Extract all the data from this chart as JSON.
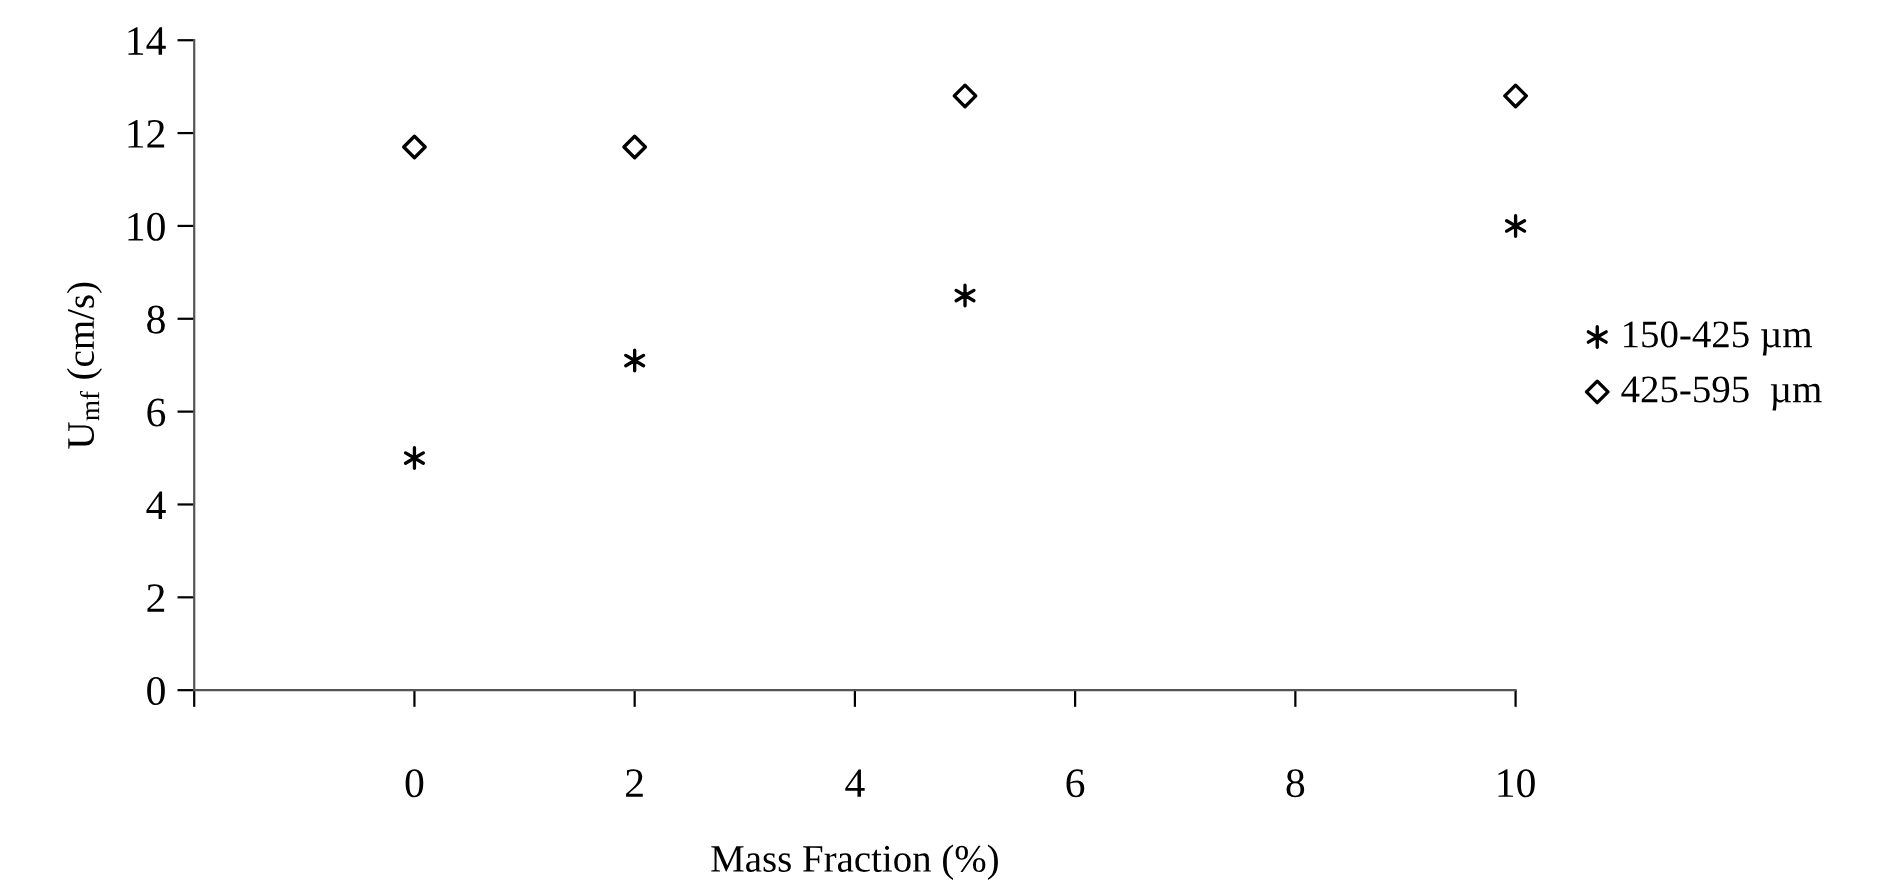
{
  "chart_data": {
    "type": "scatter",
    "xlabel": "Mass Fraction (%)",
    "ylabel": "U$_{mf}$ (cm/s)",
    "x": [
      0,
      2,
      5,
      10
    ],
    "series": [
      {
        "name": "150-425 µm",
        "color": "#000000",
        "marker": "cross",
        "values": [
          5.0,
          7.1,
          8.5,
          10.0
        ]
      },
      {
        "name": "425-595  µm",
        "color": "#000000",
        "marker": "diamond",
        "values": [
          11.7,
          11.7,
          12.8,
          12.8
        ]
      }
    ],
    "xlim": [
      -2,
      10
    ],
    "xticks": [
      {
        "value": -2,
        "label": null
      },
      0,
      2,
      4,
      6,
      8,
      10
    ],
    "ylim": [
      0,
      14
    ],
    "yticks": [
      0,
      2,
      4,
      6,
      8,
      10,
      12,
      14
    ],
    "grid": false,
    "legend": "right"
  }
}
